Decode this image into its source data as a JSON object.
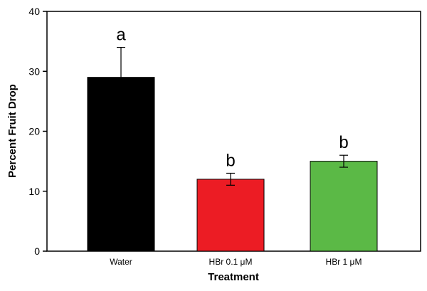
{
  "chart_data": {
    "type": "bar",
    "categories": [
      "Water",
      "HBr 0.1 μM",
      "HBr 1 μM"
    ],
    "values": [
      29,
      12,
      15
    ],
    "errors": [
      5,
      1,
      1
    ],
    "significance": [
      "a",
      "b",
      "b"
    ],
    "colors": [
      "#000000",
      "#ec1c24",
      "#5bb946"
    ],
    "xlabel": "Treatment",
    "ylabel": "Percent Fruit Drop",
    "ylim": [
      0,
      40
    ],
    "yticks": [
      0,
      10,
      20,
      30,
      40
    ],
    "grid": false,
    "legend": "none"
  }
}
